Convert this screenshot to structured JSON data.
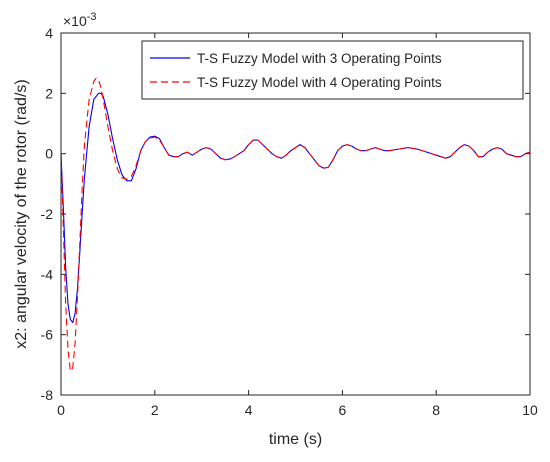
{
  "chart_data": {
    "type": "line",
    "title": "",
    "xlabel": "time (s)",
    "ylabel": "x2: angular velocity of the rotor (rad/s)",
    "xlim": [
      0,
      10
    ],
    "ylim": [
      -8,
      4
    ],
    "y_scale_exponent_label": "×10",
    "y_scale_exponent_power": "-3",
    "x_ticks": [
      0,
      2,
      4,
      6,
      8,
      10
    ],
    "y_ticks": [
      -8,
      -6,
      -4,
      -2,
      0,
      2,
      4
    ],
    "x_tick_labels": [
      "0",
      "2",
      "4",
      "6",
      "8",
      "10"
    ],
    "y_tick_labels": [
      "-8",
      "-6",
      "-4",
      "-2",
      "0",
      "2",
      "4"
    ],
    "grid": false,
    "legend_position": "top-right",
    "series": [
      {
        "name": "T-S Fuzzy Model with 3 Operating Points",
        "color": "#0000ff",
        "dash": "solid",
        "x": [
          0,
          0.05,
          0.1,
          0.15,
          0.2,
          0.25,
          0.3,
          0.35,
          0.4,
          0.45,
          0.5,
          0.6,
          0.7,
          0.8,
          0.85,
          0.9,
          1.0,
          1.1,
          1.2,
          1.3,
          1.4,
          1.5,
          1.6,
          1.7,
          1.8,
          1.9,
          2.0,
          2.1,
          2.2,
          2.3,
          2.4,
          2.5,
          2.6,
          2.7,
          2.8,
          2.9,
          3.0,
          3.1,
          3.2,
          3.3,
          3.4,
          3.5,
          3.6,
          3.7,
          3.8,
          3.9,
          4.0,
          4.1,
          4.2,
          4.3,
          4.4,
          4.5,
          4.6,
          4.7,
          4.8,
          4.9,
          5.0,
          5.1,
          5.2,
          5.3,
          5.4,
          5.5,
          5.6,
          5.7,
          5.8,
          5.9,
          6.0,
          6.1,
          6.2,
          6.3,
          6.4,
          6.5,
          6.6,
          6.7,
          6.8,
          6.9,
          7.0,
          7.2,
          7.4,
          7.6,
          7.8,
          8.0,
          8.1,
          8.2,
          8.3,
          8.4,
          8.5,
          8.6,
          8.7,
          8.8,
          8.9,
          9.0,
          9.1,
          9.2,
          9.3,
          9.4,
          9.5,
          9.6,
          9.7,
          9.8,
          9.9,
          10.0
        ],
        "y": [
          0,
          -1.8,
          -3.8,
          -5.0,
          -5.5,
          -5.6,
          -5.3,
          -4.5,
          -3.3,
          -2.0,
          -0.8,
          0.9,
          1.8,
          2.0,
          2.0,
          1.9,
          1.3,
          0.5,
          -0.2,
          -0.7,
          -0.9,
          -0.9,
          -0.5,
          0.1,
          0.4,
          0.55,
          0.58,
          0.5,
          0.2,
          -0.05,
          -0.1,
          -0.1,
          0.0,
          0.05,
          -0.05,
          0.05,
          0.15,
          0.2,
          0.15,
          0.0,
          -0.15,
          -0.2,
          -0.18,
          -0.1,
          0.0,
          0.1,
          0.3,
          0.45,
          0.45,
          0.3,
          0.15,
          0.0,
          -0.1,
          -0.15,
          -0.05,
          0.1,
          0.2,
          0.3,
          0.2,
          0.0,
          -0.2,
          -0.4,
          -0.48,
          -0.45,
          -0.2,
          0.1,
          0.25,
          0.3,
          0.25,
          0.15,
          0.1,
          0.1,
          0.15,
          0.2,
          0.15,
          0.1,
          0.1,
          0.15,
          0.2,
          0.15,
          0.05,
          -0.05,
          -0.1,
          -0.15,
          -0.1,
          0.05,
          0.2,
          0.3,
          0.25,
          0.1,
          -0.1,
          -0.1,
          0.05,
          0.15,
          0.2,
          0.15,
          0.0,
          -0.05,
          -0.1,
          -0.1,
          0.0,
          0.05
        ]
      },
      {
        "name": "T-S Fuzzy Model with 4 Operating Points",
        "color": "#ff0000",
        "dash": "dashed",
        "x": [
          0,
          0.05,
          0.1,
          0.15,
          0.2,
          0.25,
          0.3,
          0.35,
          0.4,
          0.45,
          0.5,
          0.6,
          0.7,
          0.75,
          0.8,
          0.85,
          0.9,
          1.0,
          1.1,
          1.2,
          1.3,
          1.4,
          1.5,
          1.6,
          1.7,
          1.8,
          1.9,
          2.0,
          2.1,
          2.2,
          2.3,
          2.4,
          2.5,
          2.6,
          2.7,
          2.8,
          2.9,
          3.0,
          3.1,
          3.2,
          3.3,
          3.4,
          3.5,
          3.6,
          3.7,
          3.8,
          3.9,
          4.0,
          4.1,
          4.2,
          4.3,
          4.4,
          4.5,
          4.6,
          4.7,
          4.8,
          4.9,
          5.0,
          5.1,
          5.2,
          5.3,
          5.4,
          5.5,
          5.6,
          5.7,
          5.8,
          5.9,
          6.0,
          6.1,
          6.2,
          6.3,
          6.4,
          6.5,
          6.6,
          6.7,
          6.8,
          6.9,
          7.0,
          7.2,
          7.4,
          7.6,
          7.8,
          8.0,
          8.1,
          8.2,
          8.3,
          8.4,
          8.5,
          8.6,
          8.7,
          8.8,
          8.9,
          9.0,
          9.1,
          9.2,
          9.3,
          9.4,
          9.5,
          9.6,
          9.7,
          9.8,
          9.9,
          10.0
        ],
        "y": [
          0,
          -2.5,
          -5.0,
          -6.5,
          -7.2,
          -7.1,
          -6.3,
          -4.8,
          -3.0,
          -1.2,
          0.3,
          1.8,
          2.4,
          2.5,
          2.45,
          2.2,
          1.8,
          0.9,
          0.1,
          -0.5,
          -0.8,
          -0.85,
          -0.75,
          -0.4,
          0.1,
          0.4,
          0.52,
          0.55,
          0.45,
          0.2,
          -0.05,
          -0.1,
          -0.1,
          0.0,
          0.05,
          -0.05,
          0.05,
          0.15,
          0.2,
          0.15,
          0.0,
          -0.15,
          -0.2,
          -0.18,
          -0.1,
          0.0,
          0.1,
          0.3,
          0.45,
          0.45,
          0.3,
          0.15,
          0.0,
          -0.1,
          -0.15,
          -0.05,
          0.1,
          0.2,
          0.3,
          0.2,
          0.0,
          -0.2,
          -0.4,
          -0.48,
          -0.45,
          -0.2,
          0.1,
          0.25,
          0.3,
          0.25,
          0.15,
          0.1,
          0.1,
          0.15,
          0.2,
          0.15,
          0.1,
          0.1,
          0.15,
          0.2,
          0.15,
          0.05,
          -0.05,
          -0.1,
          -0.15,
          -0.1,
          0.05,
          0.2,
          0.3,
          0.25,
          0.1,
          -0.1,
          -0.1,
          0.05,
          0.15,
          0.2,
          0.15,
          0.0,
          -0.05,
          -0.1,
          -0.1,
          0.0,
          0.05
        ]
      }
    ]
  }
}
